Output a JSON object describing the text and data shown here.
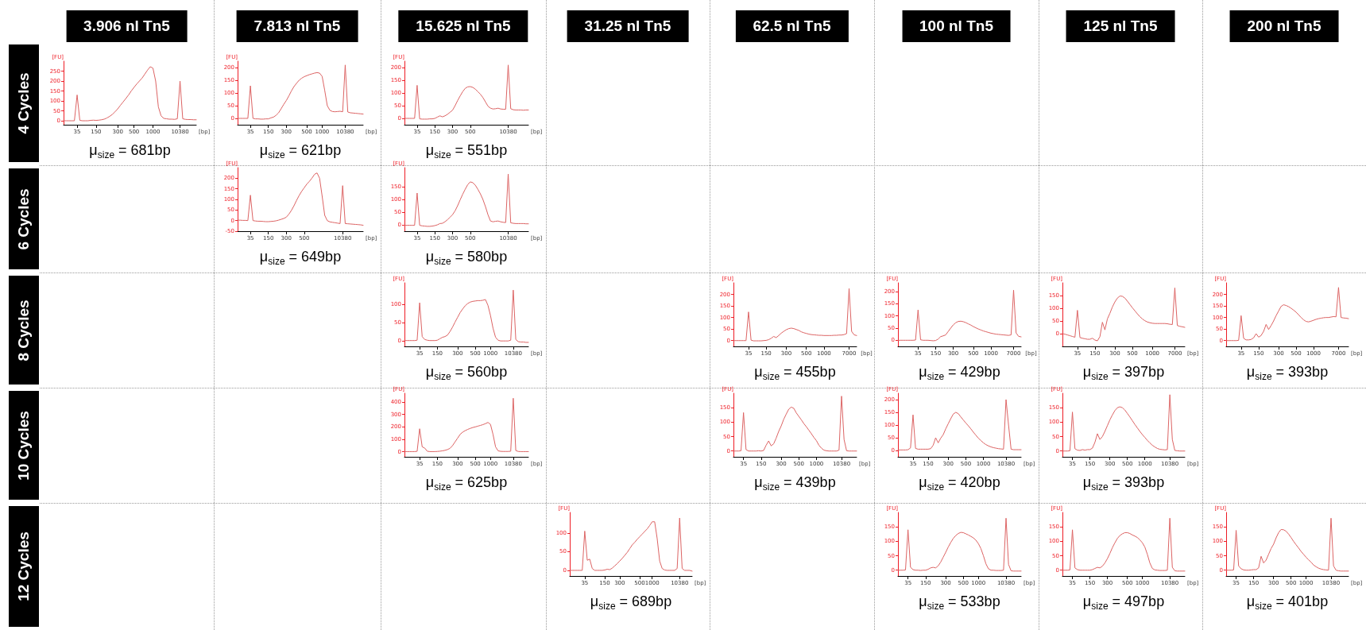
{
  "chart_data": [
    {
      "type": "other",
      "annotations": [
        "3.906 nl Tn5",
        "7.813 nl Tn5",
        "15.625 nl Tn5",
        "31.25 nl Tn5",
        "62.5 nl Tn5",
        "100 nl Tn5",
        "125 nl Tn5",
        "200 nl Tn5"
      ]
    },
    {
      "type": "other",
      "annotations": [
        "4 Cycles",
        "6 Cycles",
        "8 Cycles",
        "10 Cycles",
        "12 Cycles"
      ]
    },
    {
      "type": "line",
      "xlabel": "[bp]",
      "ylabel": "[FU]",
      "ylim": [
        -20,
        300
      ],
      "yticks": [
        0,
        50,
        100,
        150,
        200,
        250
      ],
      "color": "#dc6464",
      "annotations": [
        "μ$_{size}$ = 681bp"
      ],
      "categories": [
        null,
        null,
        null,
        null,
        null,
        "35",
        null,
        null,
        null,
        null,
        null,
        null,
        "150",
        null,
        null,
        null,
        null,
        null,
        null,
        null,
        "300",
        null,
        null,
        null,
        null,
        null,
        "500",
        null,
        null,
        null,
        null,
        null,
        null,
        "1000",
        null,
        null,
        null,
        null,
        null,
        null,
        null,
        null,
        null,
        "10380",
        null,
        null,
        null,
        null,
        null,
        null
      ],
      "values": [
        0,
        0,
        0,
        0,
        0,
        130,
        2,
        0,
        0,
        0,
        2,
        3,
        2,
        3,
        5,
        8,
        14,
        22,
        32,
        45,
        60,
        78,
        95,
        112,
        130,
        150,
        168,
        185,
        200,
        215,
        235,
        255,
        272,
        265,
        200,
        70,
        25,
        12,
        10,
        8,
        8,
        7,
        10,
        200,
        10,
        7,
        6,
        6,
        5,
        5
      ]
    },
    {
      "type": "line",
      "xlabel": "[bp]",
      "ylabel": "[FU]",
      "ylim": [
        -25,
        225
      ],
      "yticks": [
        0,
        50,
        100,
        150,
        200
      ],
      "color": "#dc6464",
      "annotations": [
        "μ$_{size}$ = 621bp"
      ],
      "categories": [
        null,
        null,
        null,
        null,
        null,
        "35",
        null,
        null,
        null,
        null,
        null,
        null,
        "150",
        null,
        null,
        null,
        null,
        null,
        null,
        "300",
        null,
        null,
        null,
        null,
        null,
        null,
        null,
        "500",
        null,
        null,
        null,
        null,
        null,
        "1000",
        null,
        null,
        null,
        null,
        null,
        null,
        null,
        null,
        "10380",
        null,
        null,
        null,
        null,
        null,
        null,
        null
      ],
      "values": [
        0,
        0,
        0,
        0,
        0,
        128,
        0,
        -2,
        -2,
        -3,
        -3,
        -2,
        -2,
        2,
        5,
        12,
        22,
        38,
        55,
        70,
        88,
        108,
        125,
        138,
        150,
        158,
        164,
        168,
        172,
        175,
        178,
        180,
        178,
        165,
        110,
        50,
        32,
        27,
        26,
        27,
        28,
        26,
        210,
        25,
        22,
        21,
        20,
        19,
        18,
        17
      ]
    },
    {
      "type": "line",
      "xlabel": "[bp]",
      "ylabel": "[FU]",
      "ylim": [
        -25,
        225
      ],
      "yticks": [
        0,
        50,
        100,
        150,
        200
      ],
      "color": "#dc6464",
      "annotations": [
        "μ$_{size}$ = 551bp"
      ],
      "categories": [
        null,
        null,
        null,
        null,
        null,
        "35",
        null,
        null,
        null,
        null,
        null,
        null,
        "150",
        null,
        null,
        null,
        null,
        null,
        null,
        "300",
        null,
        null,
        null,
        null,
        null,
        null,
        "500",
        null,
        null,
        null,
        null,
        null,
        null,
        null,
        null,
        null,
        null,
        null,
        null,
        null,
        null,
        "10380",
        null,
        null,
        null,
        null,
        null,
        null,
        null,
        null
      ],
      "values": [
        0,
        0,
        0,
        0,
        0,
        130,
        -2,
        -3,
        -3,
        -3,
        -2,
        -2,
        0,
        5,
        10,
        6,
        10,
        16,
        24,
        32,
        50,
        70,
        88,
        105,
        118,
        124,
        125,
        122,
        115,
        105,
        95,
        82,
        65,
        48,
        40,
        37,
        38,
        40,
        37,
        36,
        36,
        210,
        38,
        34,
        33,
        33,
        33,
        32,
        33,
        33
      ]
    },
    {
      "type": "line",
      "xlabel": "[bp]",
      "ylabel": "[FU]",
      "ylim": [
        -50,
        250
      ],
      "yticks": [
        -50,
        0,
        50,
        100,
        150,
        200
      ],
      "color": "#dc6464",
      "annotations": [
        "μ$_{size}$ = 649bp"
      ],
      "categories": [
        null,
        null,
        null,
        null,
        null,
        "35",
        null,
        null,
        null,
        null,
        null,
        null,
        "150",
        null,
        null,
        null,
        null,
        null,
        null,
        "300",
        null,
        null,
        null,
        null,
        null,
        null,
        "500",
        null,
        null,
        null,
        null,
        null,
        null,
        null,
        null,
        null,
        null,
        null,
        null,
        null,
        null,
        "10380",
        null,
        null,
        null,
        null,
        null,
        null,
        null,
        null
      ],
      "values": [
        2,
        2,
        1,
        1,
        0,
        120,
        0,
        -2,
        -3,
        -3,
        -4,
        -5,
        -5,
        -4,
        -3,
        -1,
        2,
        6,
        10,
        16,
        30,
        48,
        70,
        95,
        118,
        138,
        155,
        172,
        185,
        200,
        218,
        225,
        200,
        115,
        25,
        0,
        -6,
        -8,
        -10,
        -12,
        -14,
        165,
        -14,
        -15,
        -16,
        -17,
        -18,
        -19,
        -20,
        -22
      ]
    },
    {
      "type": "line",
      "xlabel": "[bp]",
      "ylabel": "[FU]",
      "ylim": [
        -25,
        225
      ],
      "yticks": [
        0,
        50,
        100,
        150
      ],
      "color": "#dc6464",
      "annotations": [
        "μ$_{size}$ = 580bp"
      ],
      "categories": [
        null,
        null,
        null,
        null,
        null,
        "35",
        null,
        null,
        null,
        null,
        null,
        null,
        "150",
        null,
        null,
        null,
        null,
        null,
        null,
        "300",
        null,
        null,
        null,
        null,
        null,
        null,
        "500",
        null,
        null,
        null,
        null,
        null,
        null,
        null,
        null,
        null,
        null,
        null,
        null,
        null,
        null,
        "10380",
        null,
        null,
        null,
        null,
        null,
        null,
        null,
        null
      ],
      "values": [
        -2,
        -2,
        -2,
        -2,
        -2,
        125,
        -2,
        -4,
        -5,
        -6,
        -6,
        -5,
        -3,
        0,
        5,
        6,
        12,
        20,
        30,
        40,
        55,
        75,
        98,
        120,
        140,
        158,
        169,
        166,
        156,
        140,
        122,
        100,
        72,
        40,
        15,
        12,
        14,
        15,
        12,
        10,
        9,
        200,
        8,
        6,
        5,
        5,
        5,
        5,
        4,
        4
      ]
    },
    {
      "type": "line",
      "xlabel": "[bp]",
      "ylabel": "[FU]",
      "ylim": [
        -15,
        160
      ],
      "yticks": [
        0,
        50,
        100
      ],
      "color": "#dc6464",
      "annotations": [
        "μ$_{size}$ = 560bp"
      ],
      "categories": [
        null,
        null,
        null,
        null,
        null,
        null,
        "35",
        null,
        null,
        null,
        null,
        null,
        null,
        "150",
        null,
        null,
        null,
        null,
        null,
        null,
        null,
        "300",
        null,
        null,
        null,
        null,
        null,
        null,
        "500",
        null,
        null,
        null,
        null,
        null,
        "1000",
        null,
        null,
        null,
        null,
        null,
        null,
        null,
        null,
        "10380",
        null,
        null,
        null,
        null,
        null,
        null
      ],
      "values": [
        1,
        1,
        1,
        1,
        1,
        2,
        105,
        12,
        4,
        2,
        1,
        1,
        1,
        2,
        6,
        10,
        12,
        16,
        26,
        38,
        52,
        65,
        78,
        88,
        97,
        103,
        107,
        109,
        110,
        111,
        111,
        112,
        114,
        98,
        70,
        35,
        10,
        2,
        0,
        0,
        0,
        0,
        2,
        140,
        4,
        -2,
        -3,
        -3,
        -4,
        -4
      ]
    },
    {
      "type": "line",
      "xlabel": "[bp]",
      "ylabel": "[FU]",
      "ylim": [
        -25,
        250
      ],
      "yticks": [
        0,
        50,
        100,
        150,
        200
      ],
      "color": "#dc6464",
      "annotations": [
        "μ$_{size}$ = 455bp"
      ],
      "categories": [
        null,
        null,
        null,
        null,
        null,
        null,
        "35",
        null,
        null,
        null,
        null,
        null,
        null,
        "150",
        null,
        null,
        null,
        null,
        null,
        null,
        null,
        "300",
        null,
        null,
        null,
        null,
        null,
        null,
        null,
        "500",
        null,
        null,
        null,
        null,
        null,
        null,
        "1000",
        null,
        null,
        null,
        null,
        null,
        null,
        null,
        null,
        null,
        "7000",
        null,
        null,
        null
      ],
      "values": [
        0,
        0,
        0,
        0,
        0,
        0,
        124,
        2,
        -1,
        -1,
        -1,
        -1,
        0,
        1,
        4,
        10,
        18,
        13,
        22,
        32,
        40,
        47,
        52,
        54,
        52,
        48,
        44,
        38,
        34,
        31,
        28,
        26,
        25,
        24,
        23,
        23,
        22,
        22,
        22,
        22,
        23,
        23,
        24,
        24,
        26,
        30,
        225,
        40,
        25,
        22
      ]
    },
    {
      "type": "line",
      "xlabel": "[bp]",
      "ylabel": "[FU]",
      "ylim": [
        -25,
        235
      ],
      "yticks": [
        0,
        50,
        100,
        150,
        200
      ],
      "color": "#dc6464",
      "annotations": [
        "μ$_{size}$ = 429bp"
      ],
      "categories": [
        null,
        null,
        null,
        null,
        null,
        null,
        null,
        null,
        "35",
        null,
        null,
        null,
        null,
        null,
        null,
        "150",
        null,
        null,
        null,
        null,
        null,
        null,
        "300",
        null,
        null,
        null,
        null,
        null,
        null,
        null,
        "500",
        null,
        null,
        null,
        null,
        null,
        null,
        "1000",
        null,
        null,
        null,
        null,
        null,
        null,
        null,
        null,
        "7000",
        null,
        null,
        null
      ],
      "values": [
        0,
        0,
        0,
        0,
        0,
        0,
        0,
        1,
        124,
        2,
        0,
        0,
        0,
        -1,
        -2,
        -1,
        5,
        15,
        18,
        22,
        36,
        50,
        63,
        72,
        77,
        78,
        76,
        72,
        67,
        62,
        56,
        51,
        46,
        42,
        38,
        35,
        32,
        29,
        27,
        25,
        24,
        23,
        22,
        21,
        20,
        22,
        205,
        30,
        16,
        14
      ]
    },
    {
      "type": "line",
      "xlabel": "[bp]",
      "ylabel": "[FU]",
      "ylim": [
        -50,
        200
      ],
      "yticks": [
        0,
        50,
        100,
        150
      ],
      "color": "#dc6464",
      "annotations": [
        "μ$_{size}$ = 397bp"
      ],
      "categories": [
        null,
        null,
        null,
        null,
        null,
        null,
        "35",
        null,
        null,
        null,
        null,
        null,
        null,
        "150",
        null,
        null,
        null,
        null,
        null,
        null,
        null,
        "300",
        null,
        null,
        null,
        null,
        null,
        null,
        "500",
        null,
        null,
        null,
        null,
        null,
        null,
        null,
        "1000",
        null,
        null,
        null,
        null,
        null,
        null,
        null,
        null,
        "7000",
        null,
        null,
        null,
        null
      ],
      "values": [
        0,
        -2,
        -5,
        -8,
        -11,
        -14,
        92,
        -15,
        -18,
        -20,
        -22,
        -22,
        -18,
        -25,
        -28,
        -12,
        45,
        15,
        58,
        80,
        105,
        125,
        140,
        148,
        147,
        140,
        128,
        115,
        102,
        90,
        78,
        67,
        58,
        51,
        46,
        43,
        41,
        40,
        40,
        40,
        40,
        40,
        39,
        37,
        36,
        180,
        32,
        29,
        27,
        25
      ]
    },
    {
      "type": "line",
      "xlabel": "[bp]",
      "ylabel": "[FU]",
      "ylim": [
        -25,
        250
      ],
      "yticks": [
        0,
        50,
        100,
        150,
        200
      ],
      "color": "#dc6464",
      "annotations": [
        "μ$_{size}$ = 393bp"
      ],
      "categories": [
        null,
        null,
        null,
        null,
        null,
        null,
        "35",
        null,
        null,
        null,
        null,
        null,
        null,
        "150",
        null,
        null,
        null,
        null,
        null,
        null,
        null,
        "300",
        null,
        null,
        null,
        null,
        null,
        null,
        "500",
        null,
        null,
        null,
        null,
        null,
        null,
        "1000",
        null,
        null,
        null,
        null,
        null,
        null,
        null,
        null,
        null,
        "7000",
        null,
        null,
        null,
        null
      ],
      "values": [
        0,
        0,
        0,
        0,
        0,
        1,
        108,
        10,
        3,
        3,
        5,
        12,
        30,
        15,
        22,
        40,
        70,
        48,
        65,
        85,
        108,
        128,
        148,
        155,
        152,
        147,
        140,
        132,
        123,
        112,
        100,
        90,
        83,
        81,
        84,
        88,
        92,
        95,
        97,
        99,
        100,
        100,
        102,
        104,
        103,
        230,
        100,
        98,
        97,
        95
      ]
    },
    {
      "type": "line",
      "xlabel": "[bp]",
      "ylabel": "[FU]",
      "ylim": [
        -40,
        470
      ],
      "yticks": [
        0,
        100,
        200,
        300,
        400
      ],
      "color": "#dc6464",
      "annotations": [
        "μ$_{size}$ = 625bp"
      ],
      "categories": [
        null,
        null,
        null,
        null,
        null,
        null,
        "35",
        null,
        null,
        null,
        null,
        null,
        null,
        "150",
        null,
        null,
        null,
        null,
        null,
        null,
        null,
        "300",
        null,
        null,
        null,
        null,
        null,
        null,
        "500",
        null,
        null,
        null,
        null,
        null,
        "1000",
        null,
        null,
        null,
        null,
        null,
        null,
        null,
        null,
        "10380",
        null,
        null,
        null,
        null,
        null,
        null
      ],
      "values": [
        2,
        2,
        2,
        2,
        2,
        4,
        185,
        40,
        30,
        5,
        2,
        2,
        2,
        3,
        5,
        8,
        12,
        18,
        28,
        50,
        80,
        110,
        140,
        158,
        170,
        180,
        188,
        195,
        200,
        206,
        212,
        218,
        226,
        236,
        220,
        140,
        40,
        8,
        4,
        3,
        3,
        3,
        5,
        430,
        10,
        3,
        2,
        2,
        2,
        2
      ]
    },
    {
      "type": "line",
      "xlabel": "[bp]",
      "ylabel": "[FU]",
      "ylim": [
        -20,
        200
      ],
      "yticks": [
        0,
        50,
        100,
        150
      ],
      "color": "#dc6464",
      "annotations": [
        "μ$_{size}$ = 439bp"
      ],
      "categories": [
        null,
        null,
        null,
        null,
        "35",
        null,
        null,
        null,
        null,
        null,
        null,
        "150",
        null,
        null,
        null,
        null,
        null,
        null,
        null,
        "300",
        null,
        null,
        null,
        null,
        null,
        null,
        "500",
        null,
        null,
        null,
        null,
        null,
        null,
        "1000",
        null,
        null,
        null,
        null,
        null,
        null,
        null,
        null,
        null,
        "10380",
        null,
        null,
        null,
        null,
        null,
        null
      ],
      "values": [
        0,
        0,
        0,
        1,
        133,
        5,
        0,
        0,
        0,
        0,
        1,
        0,
        2,
        20,
        35,
        18,
        25,
        45,
        68,
        87,
        110,
        128,
        145,
        152,
        148,
        132,
        120,
        108,
        95,
        84,
        72,
        60,
        47,
        36,
        20,
        10,
        3,
        1,
        0,
        0,
        0,
        0,
        3,
        190,
        40,
        1,
        0,
        0,
        0,
        0
      ]
    },
    {
      "type": "line",
      "xlabel": "[bp]",
      "ylabel": "[FU]",
      "ylim": [
        -25,
        225
      ],
      "yticks": [
        0,
        50,
        100,
        150,
        200
      ],
      "color": "#dc6464",
      "annotations": [
        "μ$_{size}$ = 420bp"
      ],
      "categories": [
        null,
        null,
        null,
        null,
        null,
        null,
        "35",
        null,
        null,
        null,
        null,
        null,
        "150",
        null,
        null,
        null,
        null,
        null,
        null,
        null,
        "300",
        null,
        null,
        null,
        null,
        null,
        null,
        "500",
        null,
        null,
        null,
        null,
        null,
        null,
        "1000",
        null,
        null,
        null,
        null,
        null,
        null,
        null,
        null,
        "10380",
        null,
        null,
        null,
        null,
        null,
        null
      ],
      "values": [
        2,
        2,
        2,
        2,
        3,
        10,
        140,
        8,
        5,
        5,
        5,
        5,
        5,
        7,
        20,
        50,
        30,
        48,
        62,
        85,
        105,
        125,
        143,
        150,
        145,
        132,
        120,
        108,
        97,
        85,
        72,
        60,
        48,
        39,
        30,
        23,
        18,
        14,
        11,
        9,
        7,
        6,
        5,
        200,
        100,
        5,
        3,
        3,
        3,
        3
      ]
    },
    {
      "type": "line",
      "xlabel": "[bp]",
      "ylabel": "[FU]",
      "ylim": [
        -20,
        200
      ],
      "yticks": [
        0,
        50,
        100,
        150
      ],
      "color": "#dc6464",
      "annotations": [
        "μ$_{size}$ = 393bp"
      ],
      "categories": [
        null,
        null,
        null,
        null,
        "35",
        null,
        null,
        null,
        null,
        null,
        null,
        "150",
        null,
        null,
        null,
        null,
        null,
        null,
        null,
        "300",
        null,
        null,
        null,
        null,
        null,
        null,
        "500",
        null,
        null,
        null,
        null,
        null,
        null,
        "1000",
        null,
        null,
        null,
        null,
        null,
        null,
        null,
        null,
        null,
        "10380",
        null,
        null,
        null,
        null,
        null,
        null
      ],
      "values": [
        0,
        0,
        0,
        1,
        135,
        8,
        3,
        2,
        5,
        3,
        5,
        5,
        10,
        30,
        60,
        40,
        50,
        68,
        88,
        108,
        125,
        140,
        150,
        153,
        150,
        142,
        130,
        118,
        105,
        92,
        80,
        68,
        57,
        47,
        37,
        28,
        20,
        14,
        9,
        6,
        5,
        4,
        5,
        195,
        40,
        2,
        1,
        0,
        0,
        0
      ]
    },
    {
      "type": "line",
      "xlabel": "[bp]",
      "ylabel": "[FU]",
      "ylim": [
        -15,
        155
      ],
      "yticks": [
        0,
        50,
        100
      ],
      "color": "#dc6464",
      "annotations": [
        "μ$_{size}$ = 689bp"
      ],
      "categories": [
        null,
        null,
        null,
        null,
        null,
        null,
        "35",
        null,
        null,
        null,
        null,
        null,
        null,
        null,
        "150",
        null,
        null,
        null,
        null,
        null,
        "300",
        null,
        null,
        null,
        null,
        null,
        null,
        null,
        "500",
        null,
        null,
        null,
        null,
        "1000",
        null,
        null,
        null,
        null,
        null,
        null,
        null,
        null,
        null,
        null,
        "10380",
        null,
        null,
        null,
        null,
        null
      ],
      "values": [
        0,
        0,
        0,
        0,
        0,
        0,
        105,
        27,
        30,
        5,
        0,
        0,
        0,
        0,
        1,
        3,
        2,
        6,
        12,
        18,
        25,
        32,
        40,
        48,
        58,
        68,
        75,
        83,
        90,
        97,
        104,
        111,
        120,
        130,
        130,
        85,
        25,
        5,
        1,
        0,
        0,
        0,
        0,
        5,
        140,
        5,
        0,
        0,
        0,
        -2
      ]
    },
    {
      "type": "line",
      "xlabel": "[bp]",
      "ylabel": "[FU]",
      "ylim": [
        -20,
        200
      ],
      "yticks": [
        0,
        50,
        100,
        150
      ],
      "color": "#dc6464",
      "annotations": [
        "μ$_{size}$ = 533bp"
      ],
      "categories": [
        null,
        null,
        null,
        null,
        "35",
        null,
        null,
        null,
        null,
        null,
        null,
        "150",
        null,
        null,
        null,
        null,
        null,
        null,
        null,
        "300",
        null,
        null,
        null,
        null,
        null,
        null,
        "500",
        null,
        null,
        null,
        null,
        null,
        "1000",
        null,
        null,
        null,
        null,
        null,
        null,
        null,
        null,
        null,
        null,
        "10380",
        null,
        null,
        null,
        null,
        null,
        null
      ],
      "values": [
        0,
        0,
        0,
        1,
        140,
        10,
        2,
        0,
        0,
        -1,
        0,
        0,
        3,
        8,
        10,
        8,
        15,
        28,
        45,
        62,
        80,
        96,
        110,
        120,
        127,
        131,
        130,
        126,
        122,
        117,
        112,
        104,
        92,
        75,
        50,
        22,
        5,
        0,
        0,
        -1,
        -1,
        -1,
        0,
        180,
        20,
        -2,
        -3,
        -3,
        -3,
        -3
      ]
    },
    {
      "type": "line",
      "xlabel": "[bp]",
      "ylabel": "[FU]",
      "ylim": [
        -20,
        200
      ],
      "yticks": [
        0,
        50,
        100,
        150
      ],
      "color": "#dc6464",
      "annotations": [
        "μ$_{size}$ = 497bp"
      ],
      "categories": [
        null,
        null,
        null,
        null,
        "35",
        null,
        null,
        null,
        null,
        null,
        null,
        "150",
        null,
        null,
        null,
        null,
        null,
        null,
        "300",
        null,
        null,
        null,
        null,
        null,
        null,
        null,
        "500",
        null,
        null,
        null,
        null,
        null,
        "1000",
        null,
        null,
        null,
        null,
        null,
        null,
        null,
        null,
        null,
        null,
        "10380",
        null,
        null,
        null,
        null,
        null,
        null
      ],
      "values": [
        0,
        0,
        0,
        1,
        140,
        8,
        2,
        0,
        0,
        0,
        0,
        0,
        2,
        6,
        10,
        8,
        14,
        25,
        40,
        58,
        78,
        95,
        110,
        120,
        126,
        130,
        130,
        127,
        122,
        118,
        113,
        105,
        95,
        80,
        55,
        25,
        6,
        1,
        0,
        -1,
        -1,
        -1,
        0,
        180,
        10,
        -2,
        -3,
        -3,
        -3,
        -3
      ]
    },
    {
      "type": "line",
      "xlabel": "[bp]",
      "ylabel": "[FU]",
      "ylim": [
        -20,
        200
      ],
      "yticks": [
        0,
        50,
        100,
        150
      ],
      "color": "#dc6464",
      "annotations": [
        "μ$_{size}$ = 401bp"
      ],
      "categories": [
        null,
        null,
        null,
        null,
        "35",
        null,
        null,
        null,
        null,
        null,
        null,
        "150",
        null,
        null,
        null,
        null,
        null,
        null,
        null,
        "300",
        null,
        null,
        null,
        null,
        null,
        null,
        "500",
        null,
        null,
        null,
        null,
        null,
        "1000",
        null,
        null,
        null,
        null,
        null,
        null,
        null,
        null,
        null,
        "10380",
        null,
        null,
        null,
        null,
        null,
        null,
        null
      ],
      "values": [
        0,
        0,
        0,
        1,
        138,
        15,
        5,
        1,
        0,
        0,
        1,
        2,
        2,
        8,
        48,
        25,
        35,
        55,
        75,
        90,
        112,
        130,
        141,
        140,
        135,
        125,
        113,
        100,
        88,
        77,
        65,
        55,
        45,
        36,
        28,
        18,
        12,
        7,
        4,
        2,
        1,
        0,
        180,
        15,
        0,
        -2,
        -3,
        -3,
        -3,
        -3
      ]
    }
  ]
}
